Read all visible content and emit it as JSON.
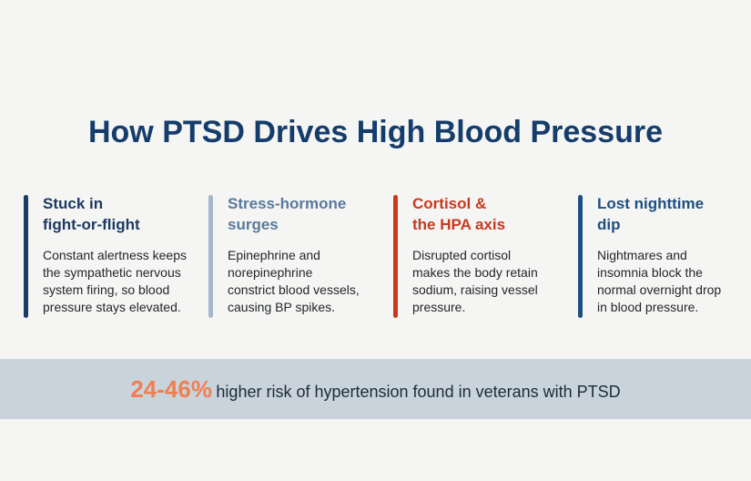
{
  "title": "How PTSD Drives High Blood Pressure",
  "columns": [
    {
      "heading": [
        "Stuck in",
        "fight-or-flight"
      ],
      "body": [
        "Constant alertness keeps",
        "the sympathetic nervous",
        "system firing, so blood",
        "pressure stays elevated."
      ]
    },
    {
      "heading": [
        "Stress-hormone",
        "surges"
      ],
      "body": [
        "Epinephrine and",
        "norepinephrine",
        "constrict blood vessels,",
        "causing BP spikes."
      ]
    },
    {
      "heading": [
        "Cortisol &",
        "the HPA axis"
      ],
      "body": [
        "Disrupted cortisol",
        "makes the body retain",
        "sodium, raising vessel",
        "pressure."
      ]
    },
    {
      "heading": [
        "Lost nighttime",
        "dip"
      ],
      "body": [
        "Nightmares and",
        "insomnia block the",
        "normal overnight drop",
        "in blood pressure."
      ]
    }
  ],
  "footer": {
    "stat": "24-46%",
    "text": "higher risk of hypertension found in veterans with PTSD"
  }
}
